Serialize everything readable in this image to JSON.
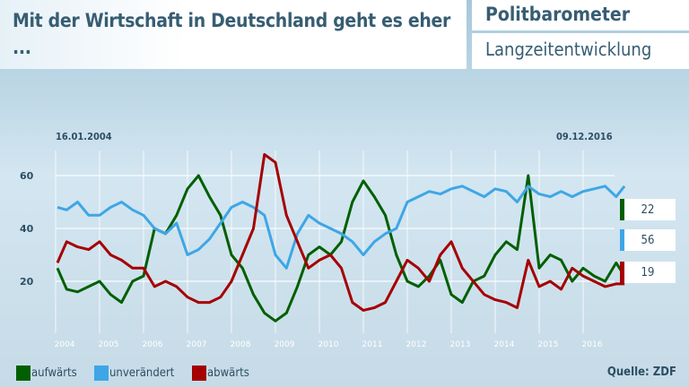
{
  "header": {
    "title": "Mit der Wirtschaft in Deutschland geht es eher ...",
    "brand": "Politbarometer",
    "subtitle": "Langzeitentwicklung"
  },
  "source": "Quelle: ZDF",
  "chart_data": {
    "type": "line",
    "start_date": "16.01.2004",
    "end_date": "09.12.2016",
    "x_ticks": [
      "2004",
      "2005",
      "2006",
      "2007",
      "2008",
      "2009",
      "2010",
      "2011",
      "2012",
      "2013",
      "2014",
      "2015",
      "2016"
    ],
    "y_ticks": [
      20,
      40,
      60
    ],
    "xlim": [
      2004,
      2017
    ],
    "ylim": [
      0,
      70
    ],
    "grid": true,
    "legend_position": "bottom-left",
    "x": [
      2004.04,
      2004.25,
      2004.5,
      2004.75,
      2005,
      2005.25,
      2005.5,
      2005.75,
      2006,
      2006.25,
      2006.5,
      2006.75,
      2007,
      2007.25,
      2007.5,
      2007.75,
      2008,
      2008.25,
      2008.5,
      2008.75,
      2009,
      2009.25,
      2009.5,
      2009.75,
      2010,
      2010.25,
      2010.5,
      2010.75,
      2011,
      2011.25,
      2011.5,
      2011.75,
      2012,
      2012.25,
      2012.5,
      2012.75,
      2013,
      2013.25,
      2013.5,
      2013.75,
      2014,
      2014.25,
      2014.5,
      2014.75,
      2015,
      2015.25,
      2015.5,
      2015.75,
      2016,
      2016.25,
      2016.5,
      2016.75,
      2016.94
    ],
    "series": [
      {
        "name": "aufwärts",
        "color": "#005f00",
        "last": "22",
        "values": [
          25,
          17,
          16,
          18,
          20,
          15,
          12,
          20,
          22,
          40,
          38,
          45,
          55,
          60,
          52,
          45,
          30,
          25,
          15,
          8,
          5,
          8,
          18,
          30,
          33,
          30,
          35,
          50,
          58,
          52,
          45,
          30,
          20,
          18,
          22,
          28,
          15,
          12,
          20,
          22,
          30,
          35,
          32,
          60,
          25,
          30,
          28,
          20,
          25,
          22,
          20,
          27,
          22
        ]
      },
      {
        "name": "unverändert",
        "color": "#3ea6e6",
        "last": "56",
        "values": [
          48,
          47,
          50,
          45,
          45,
          48,
          50,
          47,
          45,
          40,
          38,
          42,
          30,
          32,
          36,
          42,
          48,
          50,
          48,
          45,
          30,
          25,
          38,
          45,
          42,
          40,
          38,
          35,
          30,
          35,
          38,
          40,
          50,
          52,
          54,
          53,
          55,
          56,
          54,
          52,
          55,
          54,
          50,
          56,
          53,
          52,
          54,
          52,
          54,
          55,
          56,
          52,
          56
        ]
      },
      {
        "name": "abwärts",
        "color": "#a50000",
        "last": "19",
        "values": [
          27,
          35,
          33,
          32,
          35,
          30,
          28,
          25,
          25,
          18,
          20,
          18,
          14,
          12,
          12,
          14,
          20,
          30,
          40,
          68,
          65,
          45,
          35,
          25,
          28,
          30,
          25,
          12,
          9,
          10,
          12,
          20,
          28,
          25,
          20,
          30,
          35,
          25,
          20,
          15,
          13,
          12,
          10,
          28,
          18,
          20,
          17,
          25,
          22,
          20,
          18,
          19,
          19
        ]
      }
    ]
  }
}
